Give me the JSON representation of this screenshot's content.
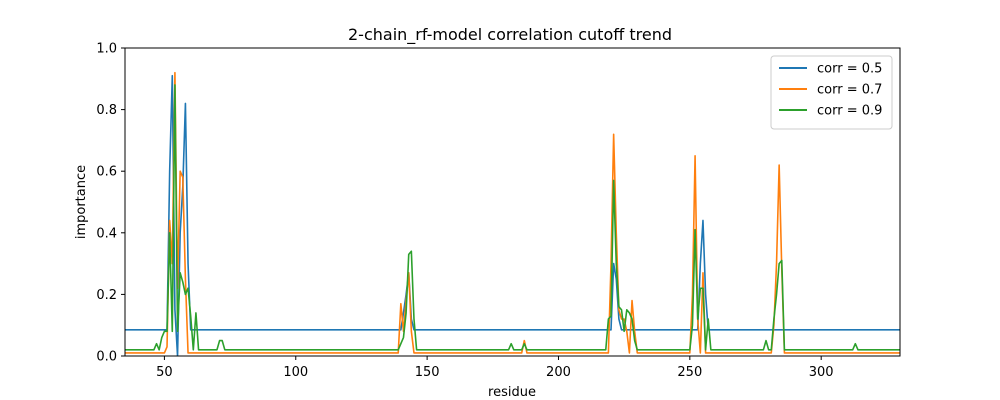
{
  "chart_data": {
    "type": "line",
    "title": "2-chain_rf-model correlation cutoff trend",
    "xlabel": "residue",
    "ylabel": "importance",
    "xlim": [
      35,
      330
    ],
    "ylim": [
      0,
      1.0
    ],
    "xticks": [
      50,
      100,
      150,
      200,
      250,
      300
    ],
    "yticks": [
      0.0,
      0.2,
      0.4,
      0.6,
      0.8,
      1.0
    ],
    "ytick_labels": [
      "0.0",
      "0.2",
      "0.4",
      "0.6",
      "0.8",
      "1.0"
    ],
    "grid": false,
    "legend_position": "top-right",
    "series": [
      {
        "name": "corr = 0.5",
        "color": "#1f77b4",
        "x": [
          35,
          51,
          52,
          53,
          54,
          55,
          56,
          57,
          58,
          59,
          60,
          140,
          141,
          142,
          143,
          144,
          145,
          220,
          221,
          222,
          223,
          224,
          253,
          254,
          255,
          256,
          257,
          330
        ],
        "y": [
          0.085,
          0.085,
          0.6,
          0.91,
          0.15,
          0.0,
          0.4,
          0.55,
          0.82,
          0.3,
          0.085,
          0.085,
          0.14,
          0.2,
          0.27,
          0.12,
          0.085,
          0.085,
          0.3,
          0.25,
          0.12,
          0.085,
          0.085,
          0.3,
          0.44,
          0.2,
          0.085,
          0.085
        ]
      },
      {
        "name": "corr = 0.7",
        "color": "#ff7f0e",
        "x": [
          35,
          50,
          51,
          52,
          53,
          54,
          55,
          56,
          57,
          58,
          59,
          60,
          139,
          140,
          141,
          142,
          143,
          144,
          145,
          186,
          187,
          188,
          219,
          220,
          221,
          222,
          223,
          224,
          225,
          226,
          227,
          228,
          229,
          230,
          250,
          251,
          252,
          253,
          254,
          255,
          256,
          257,
          281,
          282,
          283,
          284,
          285,
          286,
          330
        ],
        "y": [
          0.01,
          0.01,
          0.03,
          0.44,
          0.3,
          0.92,
          0.22,
          0.6,
          0.58,
          0.25,
          0.01,
          0.01,
          0.01,
          0.17,
          0.08,
          0.18,
          0.27,
          0.08,
          0.01,
          0.01,
          0.05,
          0.01,
          0.01,
          0.3,
          0.72,
          0.4,
          0.15,
          0.12,
          0.12,
          0.08,
          0.01,
          0.18,
          0.08,
          0.01,
          0.01,
          0.2,
          0.65,
          0.12,
          0.01,
          0.27,
          0.01,
          0.01,
          0.01,
          0.1,
          0.3,
          0.62,
          0.28,
          0.01,
          0.01
        ]
      },
      {
        "name": "corr = 0.9",
        "color": "#2ca02c",
        "x": [
          35,
          46,
          47,
          48,
          49,
          50,
          51,
          52,
          53,
          54,
          55,
          56,
          57,
          58,
          59,
          60,
          61,
          62,
          63,
          69,
          70,
          71,
          72,
          73,
          137,
          138,
          139,
          140,
          141,
          142,
          143,
          144,
          145,
          146,
          180,
          181,
          182,
          183,
          184,
          185,
          186,
          187,
          188,
          218,
          219,
          220,
          221,
          222,
          223,
          224,
          225,
          226,
          227,
          228,
          229,
          230,
          250,
          251,
          252,
          253,
          254,
          255,
          256,
          257,
          258,
          276,
          277,
          278,
          279,
          280,
          281,
          282,
          283,
          284,
          285,
          286,
          311,
          312,
          313,
          314,
          330
        ],
        "y": [
          0.02,
          0.02,
          0.04,
          0.02,
          0.06,
          0.08,
          0.08,
          0.4,
          0.08,
          0.88,
          0.08,
          0.27,
          0.24,
          0.2,
          0.22,
          0.13,
          0.02,
          0.14,
          0.02,
          0.02,
          0.02,
          0.05,
          0.05,
          0.02,
          0.02,
          0.02,
          0.02,
          0.04,
          0.06,
          0.14,
          0.33,
          0.34,
          0.12,
          0.02,
          0.02,
          0.02,
          0.04,
          0.02,
          0.02,
          0.02,
          0.02,
          0.04,
          0.02,
          0.02,
          0.12,
          0.13,
          0.57,
          0.3,
          0.16,
          0.15,
          0.08,
          0.15,
          0.14,
          0.12,
          0.05,
          0.02,
          0.02,
          0.1,
          0.41,
          0.12,
          0.22,
          0.22,
          0.02,
          0.12,
          0.02,
          0.02,
          0.02,
          0.02,
          0.05,
          0.02,
          0.02,
          0.12,
          0.2,
          0.3,
          0.31,
          0.02,
          0.02,
          0.02,
          0.04,
          0.02,
          0.02
        ]
      }
    ]
  }
}
